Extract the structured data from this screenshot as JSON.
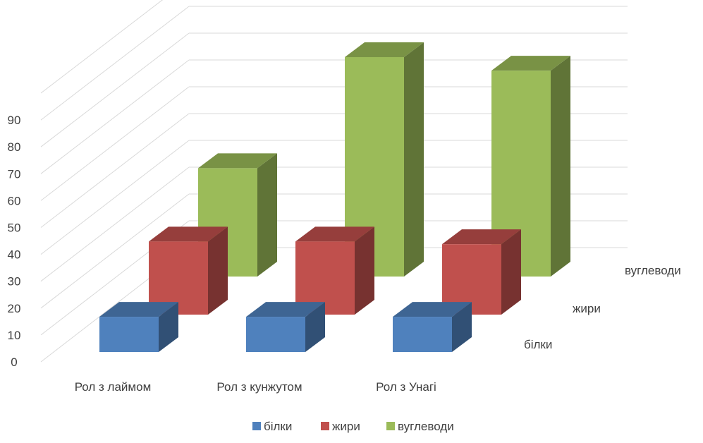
{
  "chart_data": {
    "type": "bar",
    "variant": "3d-column",
    "categories": [
      "Рол з лаймом",
      "Рол з кунжутом",
      "Рол з Унагі"
    ],
    "series": [
      {
        "name": "білки",
        "values": [
          13,
          13,
          13
        ],
        "color": "#4F81BD"
      },
      {
        "name": "жири",
        "values": [
          27,
          27,
          26
        ],
        "color": "#C0504D"
      },
      {
        "name": "вуглеводи",
        "values": [
          40,
          81,
          76
        ],
        "color": "#9BBB59"
      }
    ],
    "y_ticks": [
      "0",
      "10",
      "20",
      "30",
      "40",
      "50",
      "60",
      "70",
      "80",
      "90"
    ],
    "ylim": [
      0,
      90
    ],
    "grid": true,
    "legend": "bottom",
    "title": "",
    "xlabel": "",
    "ylabel": ""
  }
}
